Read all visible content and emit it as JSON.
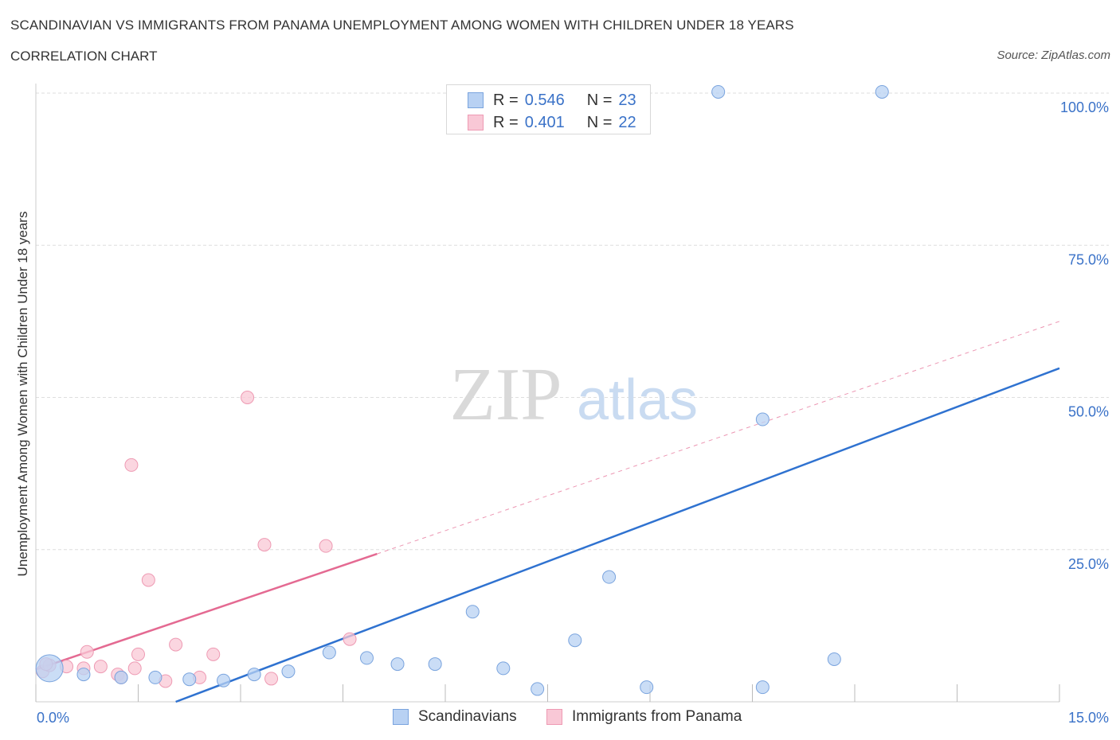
{
  "header": {
    "title": "SCANDINAVIAN VS IMMIGRANTS FROM PANAMA UNEMPLOYMENT AMONG WOMEN WITH CHILDREN UNDER 18 YEARS",
    "subtitle": "CORRELATION CHART",
    "source": "Source: ZipAtlas.com"
  },
  "watermark": {
    "zip": "ZIP",
    "atlas": "atlas"
  },
  "legend": {
    "rows": [
      {
        "r_label": "R =",
        "r_value": "0.546",
        "n_label": "N =",
        "n_value": "23"
      },
      {
        "r_label": "R =",
        "r_value": "0.401",
        "n_label": "N =",
        "n_value": "22"
      }
    ]
  },
  "bottom_legend": [
    {
      "label": "Scandinavians"
    },
    {
      "label": "Immigrants from Panama"
    }
  ],
  "colors": {
    "blue_fill": "#b8d1f3",
    "blue_stroke": "#7aa4de",
    "blue_line": "#2f72d0",
    "pink_fill": "#f9c8d6",
    "pink_stroke": "#ee9ab3",
    "pink_line": "#e46a92",
    "axis_text": "#3a72c8",
    "grid": "#dedede"
  },
  "chart_data": {
    "type": "scatter",
    "title": "SCANDINAVIAN VS IMMIGRANTS FROM PANAMA UNEMPLOYMENT AMONG WOMEN WITH CHILDREN UNDER 18 YEARS",
    "xlabel": "",
    "ylabel": "Unemployment Among Women with Children Under 18 years",
    "xlim": [
      0,
      15
    ],
    "ylim": [
      0,
      100
    ],
    "x_tick_labels": [
      "0.0%",
      "15.0%"
    ],
    "y_tick_labels": [
      "25.0%",
      "50.0%",
      "75.0%",
      "100.0%"
    ],
    "y_ticks": [
      25,
      50,
      75,
      100
    ],
    "grid": true,
    "legend_position": "top-center",
    "series": [
      {
        "name": "Scandinavians",
        "color": "#b8d1f3",
        "points": [
          {
            "x": 0.2,
            "y": 5.5,
            "big": true
          },
          {
            "x": 0.7,
            "y": 4.5
          },
          {
            "x": 1.25,
            "y": 4.0
          },
          {
            "x": 1.75,
            "y": 4.0
          },
          {
            "x": 2.25,
            "y": 3.7
          },
          {
            "x": 2.75,
            "y": 3.5
          },
          {
            "x": 3.2,
            "y": 4.5
          },
          {
            "x": 3.7,
            "y": 5.0
          },
          {
            "x": 4.3,
            "y": 8.1
          },
          {
            "x": 4.85,
            "y": 7.2
          },
          {
            "x": 5.3,
            "y": 6.2
          },
          {
            "x": 5.85,
            "y": 6.2
          },
          {
            "x": 6.4,
            "y": 14.8
          },
          {
            "x": 6.85,
            "y": 5.5
          },
          {
            "x": 7.35,
            "y": 2.1
          },
          {
            "x": 7.9,
            "y": 10.1
          },
          {
            "x": 8.4,
            "y": 20.5
          },
          {
            "x": 8.95,
            "y": 2.4
          },
          {
            "x": 10.0,
            "y": 100.2
          },
          {
            "x": 10.65,
            "y": 46.4
          },
          {
            "x": 10.65,
            "y": 2.4
          },
          {
            "x": 11.7,
            "y": 7.0
          },
          {
            "x": 12.4,
            "y": 100.2
          }
        ],
        "trend": {
          "x": [
            2.05,
            15.0
          ],
          "y": [
            0.0,
            54.8
          ]
        }
      },
      {
        "name": "Immigrants from Panama",
        "color": "#f9c8d6",
        "points": [
          {
            "x": 0.1,
            "y": 5.0
          },
          {
            "x": 0.2,
            "y": 6.0
          },
          {
            "x": 0.45,
            "y": 5.8
          },
          {
            "x": 0.7,
            "y": 5.5
          },
          {
            "x": 0.95,
            "y": 5.8
          },
          {
            "x": 0.75,
            "y": 8.2
          },
          {
            "x": 1.2,
            "y": 4.5
          },
          {
            "x": 1.45,
            "y": 5.5
          },
          {
            "x": 1.25,
            "y": 4.0
          },
          {
            "x": 1.5,
            "y": 7.8
          },
          {
            "x": 1.4,
            "y": 38.9
          },
          {
            "x": 1.65,
            "y": 20.0
          },
          {
            "x": 1.9,
            "y": 3.4
          },
          {
            "x": 2.05,
            "y": 9.4
          },
          {
            "x": 2.4,
            "y": 4.0
          },
          {
            "x": 2.6,
            "y": 7.8
          },
          {
            "x": 3.1,
            "y": 50.0
          },
          {
            "x": 3.35,
            "y": 25.8
          },
          {
            "x": 3.45,
            "y": 3.8
          },
          {
            "x": 4.25,
            "y": 25.6
          },
          {
            "x": 4.6,
            "y": 10.3
          },
          {
            "x": 0.15,
            "y": 6.2
          }
        ],
        "trend": {
          "x": [
            0.0,
            5.0
          ],
          "y": [
            5.3,
            24.3
          ]
        },
        "trend_extension": {
          "x": [
            5.0,
            15.0
          ],
          "y": [
            24.3,
            62.5
          ]
        }
      }
    ]
  }
}
